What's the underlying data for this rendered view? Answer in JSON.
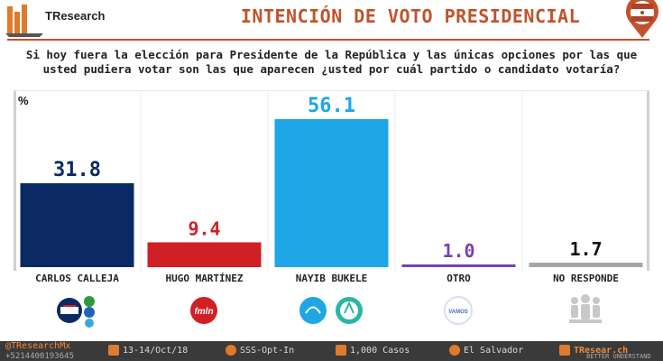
{
  "brand": "TResearch",
  "title": "INTENCIÓN DE VOTO PRESIDENCIAL",
  "question": "Si hoy fuera la elección para Presidente de la República y las únicas opciones por las que usted pudiera votar son las que aparecen ¿usted por cuál partido o candidato votaría?",
  "unit_label": "%",
  "chart_data": {
    "type": "bar",
    "categories": [
      "CARLOS CALLEJA",
      "HUGO MARTÍNEZ",
      "NAYIB BUKELE",
      "OTRO",
      "NO RESPONDE"
    ],
    "values": [
      31.8,
      9.4,
      56.1,
      1.0,
      1.7
    ],
    "value_labels": [
      "31.8",
      "9.4",
      "56.1",
      "1.0",
      "1.7"
    ],
    "colors": [
      "#0b2a63",
      "#d11f26",
      "#1ea6e6",
      "#7b3fb3",
      "#a6a6a6"
    ],
    "label_colors": [
      "#0b2a63",
      "#d11f26",
      "#1ea6e6",
      "#7b3fb3",
      "#111111"
    ],
    "ylim": [
      0,
      65
    ],
    "grid": false,
    "legend": "none"
  },
  "party_logos": [
    {
      "name": "arena-pcn-dem-logos",
      "color": "#0b2a63"
    },
    {
      "name": "fmln-logo",
      "color": "#d11f26",
      "text": "fmln"
    },
    {
      "name": "gana-nuevas-ideas-logos",
      "color": "#1ea6e6"
    },
    {
      "name": "vamos-logo",
      "color": "#4a6cc4",
      "text": "VAMOS"
    },
    {
      "name": "people-group-icon",
      "color": "#c8c8c8"
    }
  ],
  "footer": {
    "handle": "@TResearchMx",
    "phone": "+5214400193645",
    "dates": "13-14/Oct/18",
    "method": "SSS-Opt-In",
    "cases": "1,000 Casos",
    "country": "El Salvador",
    "site": "TResear.ch",
    "tagline": "BETTER UNDERSTAND"
  }
}
